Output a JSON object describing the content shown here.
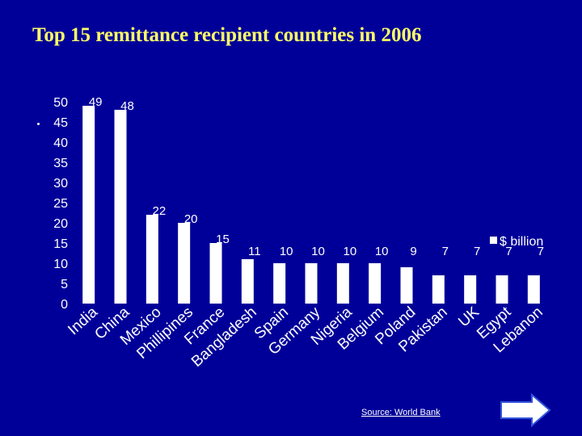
{
  "title": "Top 15 remittance recipient countries in 2006",
  "source": "Source: World Bank",
  "colors": {
    "background": "#000099",
    "title": "#FFFF66",
    "bars": "#FFFFFF",
    "text": "#FFFFFF"
  },
  "icons": {
    "next": "right-arrow-icon"
  },
  "chart_data": {
    "type": "bar",
    "title": "Top 15 remittance recipient countries in 2006",
    "xlabel": "",
    "ylabel": "",
    "ylim": [
      0,
      50
    ],
    "yticks": [
      0,
      5,
      10,
      15,
      20,
      25,
      30,
      35,
      40,
      45,
      50
    ],
    "grid": false,
    "legend_position": "right",
    "categories": [
      "India",
      "China",
      "Mexico",
      "Phillipines",
      "France",
      "Bangladesh",
      "Spain",
      "Germany",
      "Nigeria",
      "Belgium",
      "Poland",
      "Pakistan",
      "UK",
      "Egypt",
      "Lebanon"
    ],
    "series": [
      {
        "name": "$ billion",
        "values": [
          49,
          48,
          22,
          20,
          15,
          11,
          10,
          10,
          10,
          10,
          9,
          7,
          7,
          7,
          7
        ]
      }
    ]
  }
}
